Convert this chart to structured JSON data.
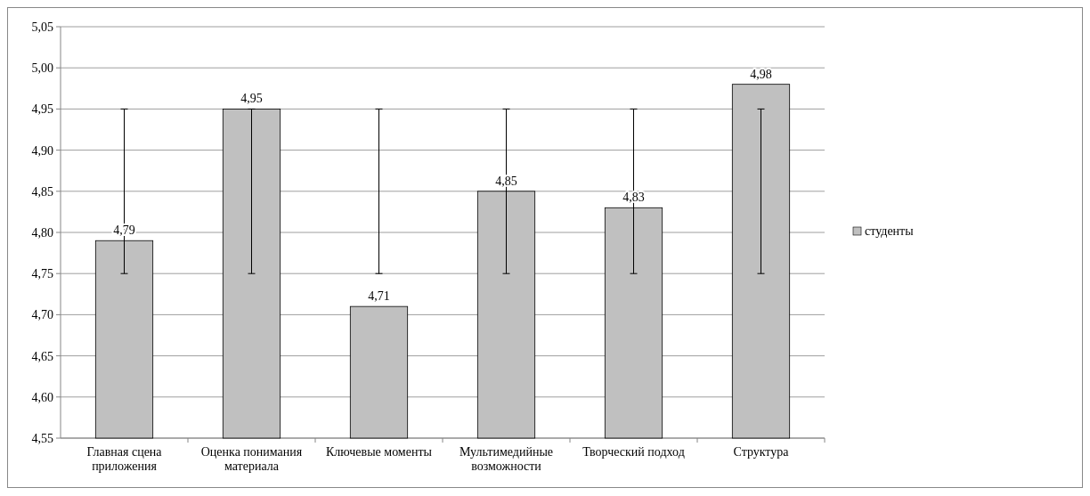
{
  "chart_data": {
    "type": "bar",
    "categories": [
      "Главная сцена приложения",
      "Оценка понимания материала",
      "Ключевые моменты",
      "Мультимедийные возможности",
      "Творческий подход",
      "Структура"
    ],
    "series": [
      {
        "name": "студенты",
        "color": "#c0c0c0",
        "values": [
          4.79,
          4.95,
          4.71,
          4.85,
          4.83,
          4.98
        ],
        "value_labels": [
          "4,79",
          "4,95",
          "4,71",
          "4,85",
          "4,83",
          "4,98"
        ],
        "errors": [
          [
            4.75,
            4.95
          ],
          [
            4.75,
            4.95
          ],
          [
            4.75,
            4.95
          ],
          [
            4.75,
            4.95
          ],
          [
            4.75,
            4.95
          ],
          [
            4.75,
            4.95
          ]
        ]
      }
    ],
    "ylim": [
      4.55,
      5.05
    ],
    "yticks": [
      {
        "value": 4.55,
        "label": "4,55"
      },
      {
        "value": 4.6,
        "label": "4,60"
      },
      {
        "value": 4.65,
        "label": "4,65"
      },
      {
        "value": 4.7,
        "label": "4,70"
      },
      {
        "value": 4.75,
        "label": "4,75"
      },
      {
        "value": 4.8,
        "label": "4,80"
      },
      {
        "value": 4.85,
        "label": "4,85"
      },
      {
        "value": 4.9,
        "label": "4,90"
      },
      {
        "value": 4.95,
        "label": "4,95"
      },
      {
        "value": 5.0,
        "label": "5,00"
      },
      {
        "value": 5.05,
        "label": "5,05"
      }
    ],
    "grid": "y",
    "legend": "right"
  }
}
